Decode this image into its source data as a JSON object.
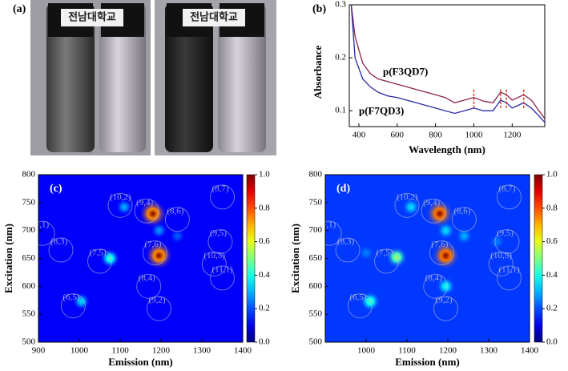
{
  "photo": {
    "label": "(a)",
    "logo": "전남대학교"
  },
  "chart_data": [
    {
      "type": "line",
      "label": "(b)",
      "xlabel": "Wavelength (nm)",
      "ylabel": "Absorbance",
      "xlim": [
        350,
        1370
      ],
      "xticks": [
        400,
        600,
        800,
        1000,
        1200
      ],
      "ylim": [
        0.07,
        0.3
      ],
      "yticks": [
        0.1,
        0.2,
        0.3
      ],
      "x": [
        360,
        380,
        420,
        460,
        500,
        550,
        600,
        650,
        700,
        750,
        800,
        850,
        900,
        950,
        1000,
        1050,
        1100,
        1140,
        1170,
        1200,
        1230,
        1260,
        1300,
        1340,
        1370
      ],
      "series": [
        {
          "name": "p(F3QD7)",
          "color": "#8b2252",
          "values": [
            0.3,
            0.24,
            0.19,
            0.17,
            0.16,
            0.155,
            0.15,
            0.145,
            0.14,
            0.135,
            0.13,
            0.125,
            0.115,
            0.12,
            0.125,
            0.118,
            0.115,
            0.135,
            0.13,
            0.12,
            0.125,
            0.13,
            0.12,
            0.1,
            0.085
          ]
        },
        {
          "name": "p(F7QD3)",
          "color": "#2a2aa8",
          "values": [
            0.3,
            0.2,
            0.16,
            0.145,
            0.135,
            0.128,
            0.125,
            0.12,
            0.115,
            0.11,
            0.105,
            0.1,
            0.095,
            0.1,
            0.105,
            0.1,
            0.1,
            0.12,
            0.115,
            0.105,
            0.11,
            0.115,
            0.105,
            0.09,
            0.078
          ]
        }
      ],
      "markers": [
        1000,
        1140,
        1170,
        1260
      ],
      "marker_color": "#e03020"
    },
    {
      "type": "heatmap",
      "label": "(c)",
      "xlabel": "Emission (nm)",
      "ylabel": "Excitation (nm)",
      "xlim": [
        900,
        1400
      ],
      "xticks": [
        900,
        1000,
        1100,
        1200,
        1300,
        1400
      ],
      "ylim": [
        500,
        800
      ],
      "yticks": [
        500,
        550,
        600,
        650,
        700,
        750,
        800
      ],
      "background": 0.12,
      "colorbar": {
        "lim": [
          0,
          1
        ],
        "ticks": [
          {
            "value": 0,
            "label": "0.0"
          },
          {
            "value": 0.2,
            "label": "0.2"
          },
          {
            "value": 0.4,
            "label": "0.4"
          },
          {
            "value": 0.6,
            "label": "0.6"
          },
          {
            "value": 0.8,
            "label": "0.8"
          },
          {
            "value": 1,
            "label": "1.0"
          }
        ]
      },
      "spots": [
        {
          "x": 1180,
          "y": 730,
          "v": 1
        },
        {
          "x": 1195,
          "y": 655,
          "v": 1
        },
        {
          "x": 1075,
          "y": 650,
          "v": 0.45
        },
        {
          "x": 1005,
          "y": 573,
          "v": 0.35
        },
        {
          "x": 1110,
          "y": 742,
          "v": 0.3
        },
        {
          "x": 1195,
          "y": 700,
          "v": 0.28
        },
        {
          "x": 1240,
          "y": 690,
          "v": 0.22
        }
      ],
      "rings": [
        {
          "label": "(9,1)",
          "x": 910,
          "y": 695
        },
        {
          "label": "(8,3)",
          "x": 955,
          "y": 665
        },
        {
          "label": "(7,5)",
          "x": 1050,
          "y": 645
        },
        {
          "label": "(10,2)",
          "x": 1100,
          "y": 745
        },
        {
          "label": "(9,4)",
          "x": 1165,
          "y": 735
        },
        {
          "label": "(8,6)",
          "x": 1240,
          "y": 720
        },
        {
          "label": "(7,6)",
          "x": 1185,
          "y": 660
        },
        {
          "label": "(8,4)",
          "x": 1170,
          "y": 600
        },
        {
          "label": "(9,2)",
          "x": 1195,
          "y": 560
        },
        {
          "label": "(6,5)",
          "x": 985,
          "y": 565
        },
        {
          "label": "(8,7)",
          "x": 1350,
          "y": 760
        },
        {
          "label": "(9,5)",
          "x": 1345,
          "y": 680
        },
        {
          "label": "(10,5)",
          "x": 1330,
          "y": 640
        },
        {
          "label": "(11,1)",
          "x": 1350,
          "y": 615
        }
      ]
    },
    {
      "type": "heatmap",
      "label": "(d)",
      "xlabel": "Emission (nm)",
      "ylabel": "Excitation (nm)",
      "xlim": [
        900,
        1400
      ],
      "xticks": [
        1000,
        1100,
        1200,
        1300,
        1400
      ],
      "ylim": [
        500,
        800
      ],
      "yticks": [
        500,
        550,
        600,
        650,
        700,
        750,
        800
      ],
      "background": 0.18,
      "colorbar": {
        "lim": [
          0,
          1
        ],
        "ticks": [
          {
            "value": 0,
            "label": "0.0"
          },
          {
            "value": 0.2,
            "label": "0.2"
          },
          {
            "value": 0.4,
            "label": "0.4"
          },
          {
            "value": 0.6,
            "label": "0.6"
          },
          {
            "value": 0.8,
            "label": "0.8"
          },
          {
            "value": 1,
            "label": "1.0"
          }
        ]
      },
      "spots": [
        {
          "x": 1180,
          "y": 730,
          "v": 1
        },
        {
          "x": 1195,
          "y": 655,
          "v": 1
        },
        {
          "x": 1075,
          "y": 652,
          "v": 0.55
        },
        {
          "x": 1010,
          "y": 573,
          "v": 0.45
        },
        {
          "x": 1110,
          "y": 742,
          "v": 0.35
        },
        {
          "x": 1195,
          "y": 700,
          "v": 0.35
        },
        {
          "x": 1195,
          "y": 600,
          "v": 0.4
        },
        {
          "x": 1240,
          "y": 690,
          "v": 0.3
        },
        {
          "x": 1320,
          "y": 680,
          "v": 0.25
        },
        {
          "x": 1000,
          "y": 660,
          "v": 0.25
        }
      ],
      "rings": [
        {
          "label": "(9,1)",
          "x": 910,
          "y": 695
        },
        {
          "label": "(8,3)",
          "x": 955,
          "y": 665
        },
        {
          "label": "(7,5)",
          "x": 1050,
          "y": 645
        },
        {
          "label": "(10,2)",
          "x": 1100,
          "y": 745
        },
        {
          "label": "(9,4)",
          "x": 1165,
          "y": 735
        },
        {
          "label": "(8,6)",
          "x": 1240,
          "y": 720
        },
        {
          "label": "(7,6)",
          "x": 1185,
          "y": 660
        },
        {
          "label": "(8,4)",
          "x": 1170,
          "y": 600
        },
        {
          "label": "(9,2)",
          "x": 1195,
          "y": 560
        },
        {
          "label": "(6,5)",
          "x": 985,
          "y": 565
        },
        {
          "label": "(8,7)",
          "x": 1350,
          "y": 760
        },
        {
          "label": "(9,5)",
          "x": 1345,
          "y": 680
        },
        {
          "label": "(10,5)",
          "x": 1330,
          "y": 640
        },
        {
          "label": "(11,1)",
          "x": 1350,
          "y": 615
        }
      ]
    }
  ]
}
